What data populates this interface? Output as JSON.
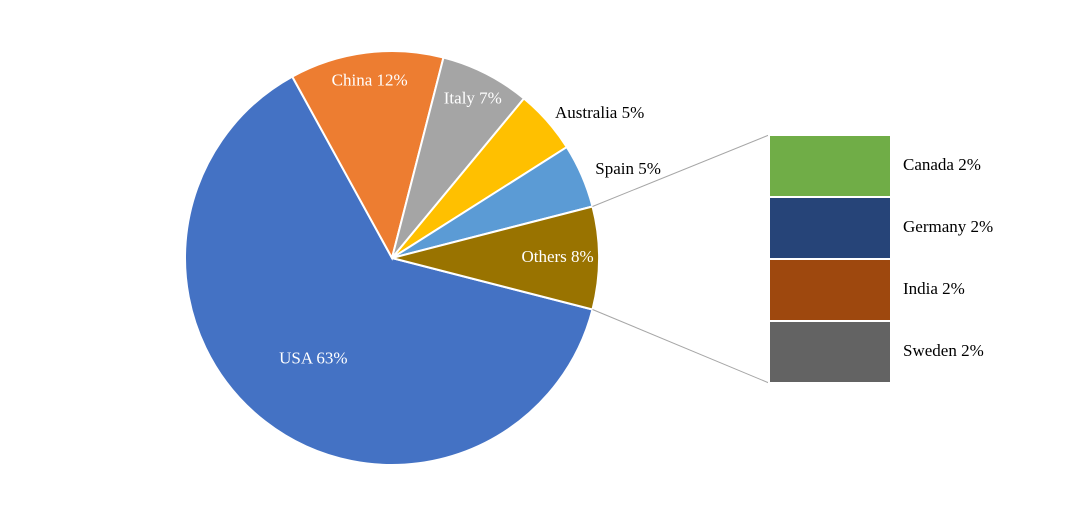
{
  "chart_data": {
    "type": "pie-of-bar",
    "values": [
      63,
      12,
      7,
      5,
      5,
      8
    ],
    "value_labels": [
      "USA 63%",
      "China 12%",
      "Italy 7%",
      "Australia 5%",
      "Spain 5%",
      "Others 8%"
    ],
    "colors": [
      "#4472c4",
      "#ed7d31",
      "#a5a5a5",
      "#ffc000",
      "#5b9bd5",
      "#997300"
    ],
    "breakout": {
      "values": [
        2,
        2,
        2,
        2
      ],
      "value_labels": [
        "Canada 2%",
        "Germany 2%",
        "India 2%",
        "Sweden 2%"
      ],
      "colors": [
        "#70ad47",
        "#264478",
        "#9e480e",
        "#636363"
      ]
    }
  }
}
